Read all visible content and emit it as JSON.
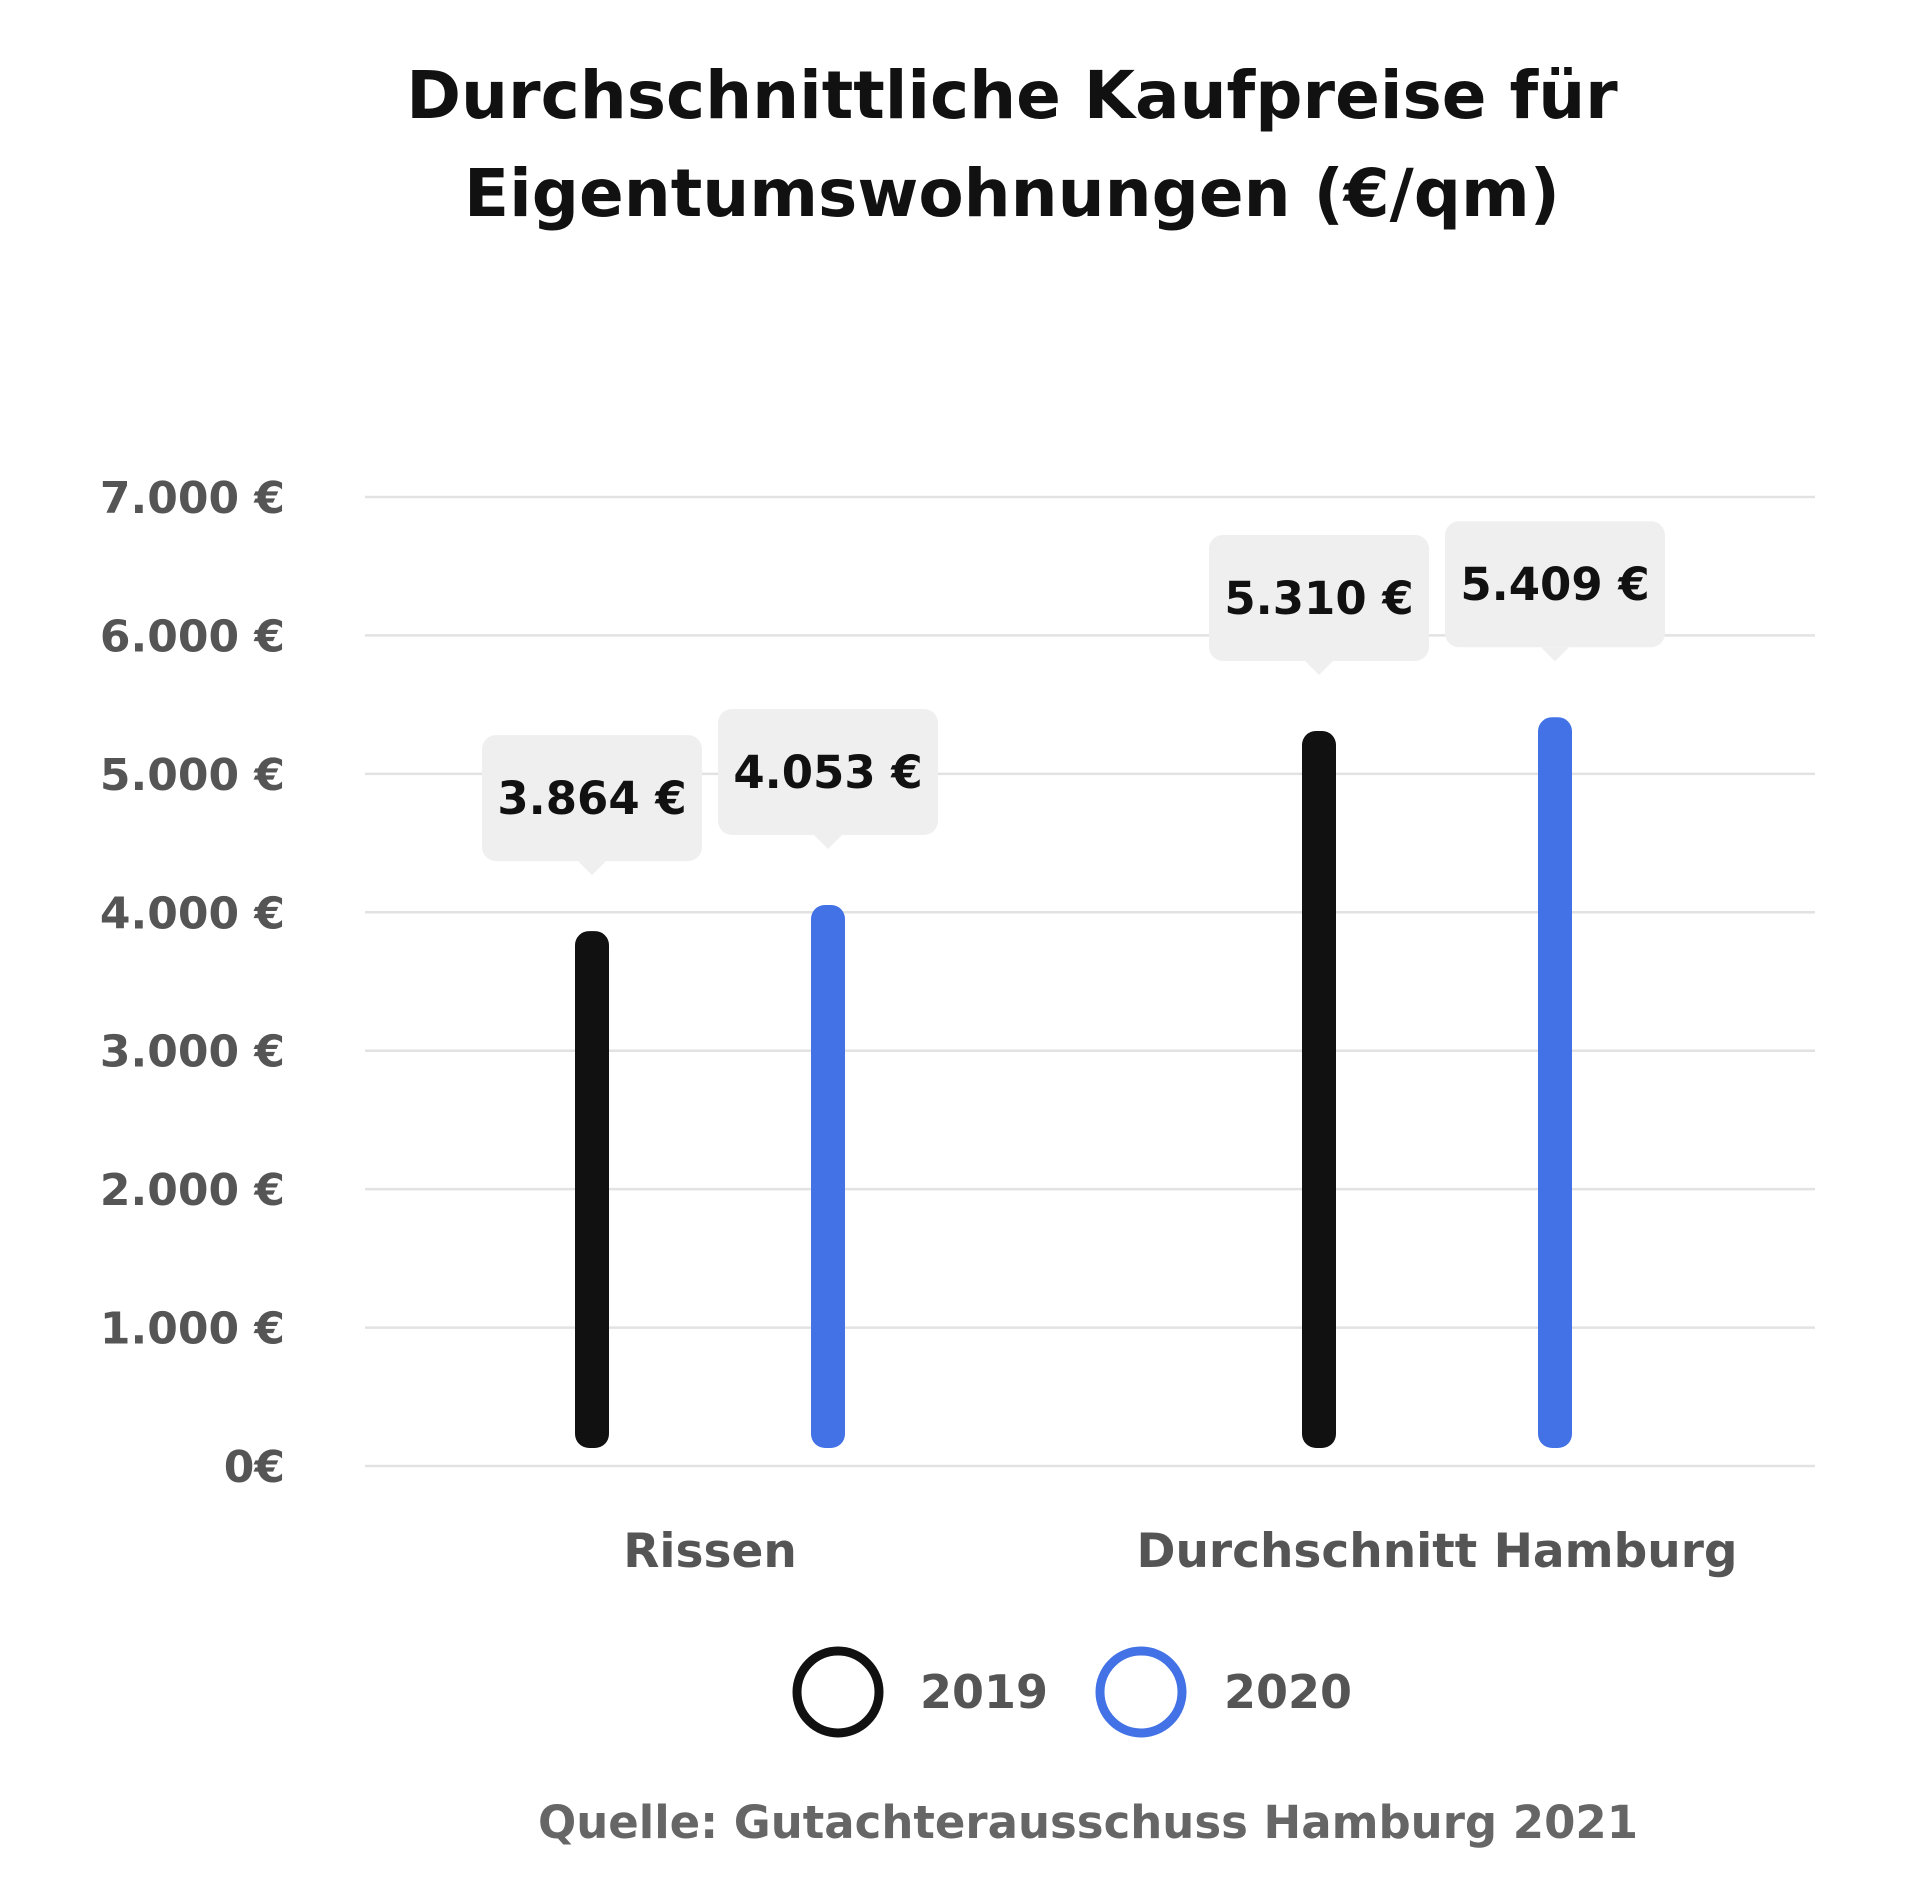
{
  "chart_data": {
    "type": "bar",
    "title_lines": [
      "Durchschnittliche Kaufpreise für",
      "Eigentumswohnungen (€/qm)"
    ],
    "categories": [
      "Rissen",
      "Durchschnitt Hamburg"
    ],
    "series": [
      {
        "name": "2019",
        "color": "#111111",
        "values": [
          3864,
          5310
        ],
        "labels": [
          "3.864 €",
          "5.310 €"
        ]
      },
      {
        "name": "2020",
        "color": "#4272e6",
        "values": [
          4053,
          5409
        ],
        "labels": [
          "4.053 €",
          "5.409 €"
        ]
      }
    ],
    "ylim": [
      0,
      7000
    ],
    "yticks": [
      0,
      1000,
      2000,
      3000,
      4000,
      5000,
      6000,
      7000
    ],
    "ytick_labels": [
      "0€",
      "1.000 €",
      "2.000 €",
      "3.000 €",
      "4.000 €",
      "5.000 €",
      "6.000 €",
      "7.000 €"
    ],
    "grid": true,
    "legend_position": "bottom",
    "source": "Quelle: Gutachterausschuss Hamburg 2021"
  }
}
